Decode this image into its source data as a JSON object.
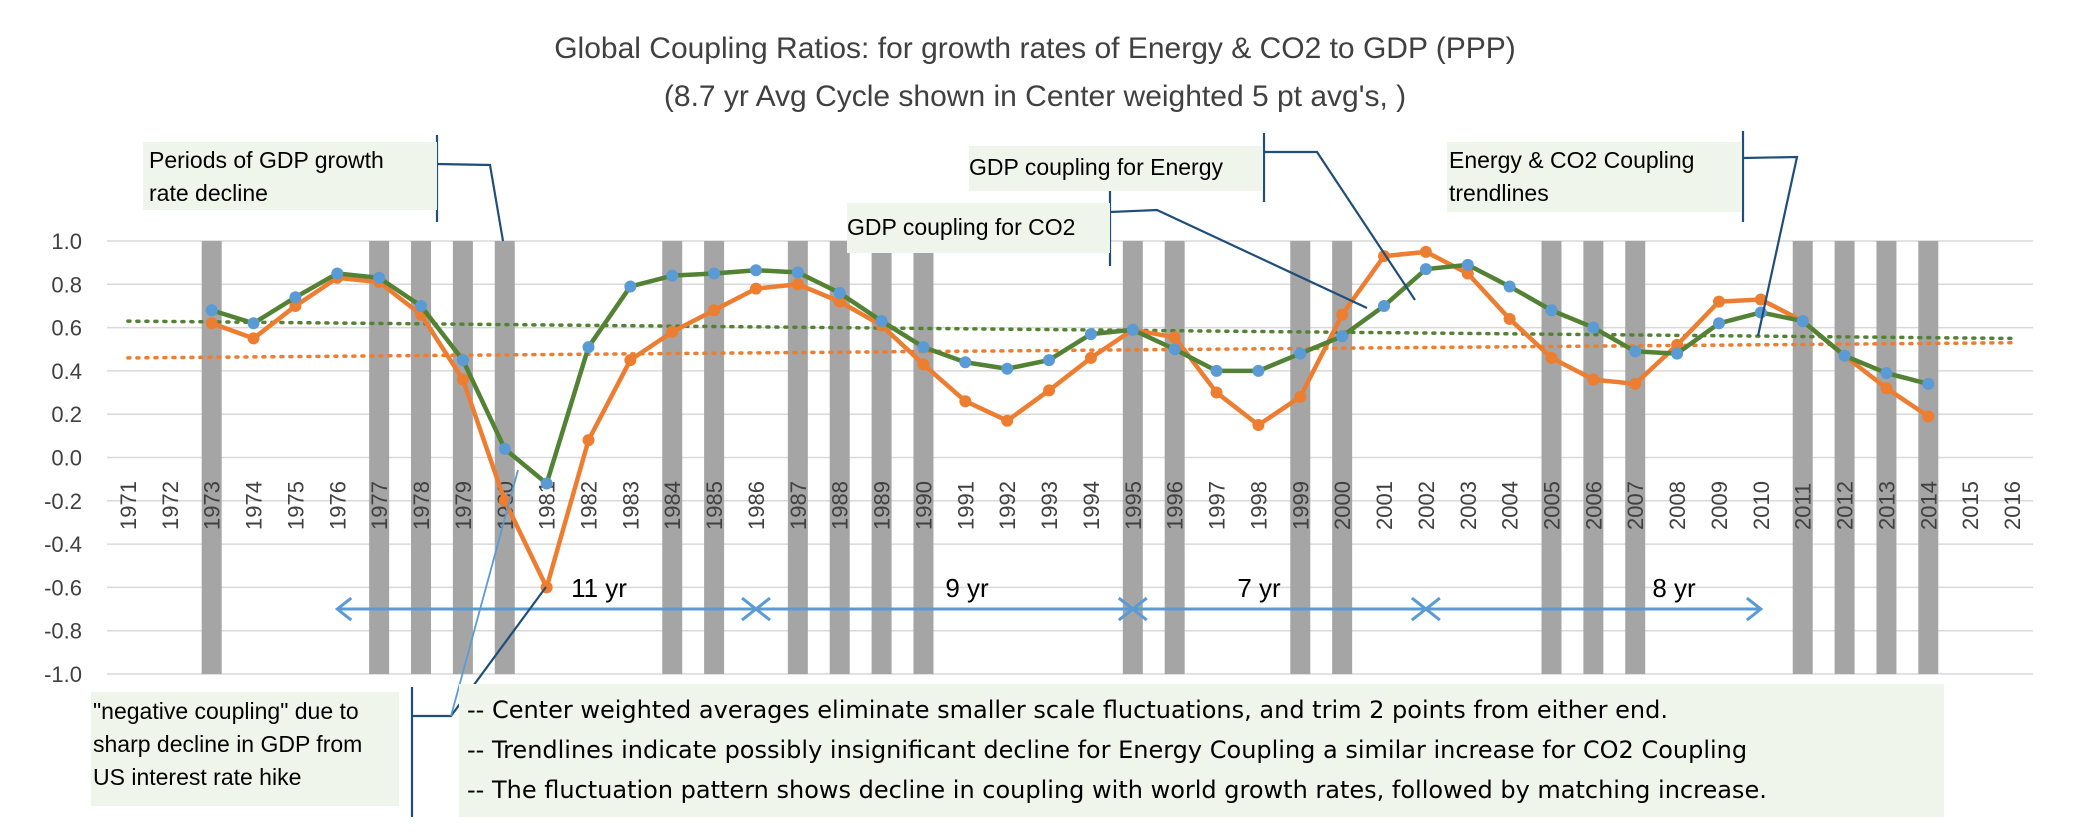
{
  "chart_data": {
    "type": "line",
    "title": "Global Coupling Ratios: for growth rates of Energy & CO2 to GDP (PPP)",
    "subtitle": "(8.7 yr Avg Cycle shown in Center weighted 5 pt avg's, )",
    "xlabel": "",
    "ylabel": "",
    "ylim": [
      -1.0,
      1.0
    ],
    "yticks": [
      "1.0",
      "0.8",
      "0.6",
      "0.4",
      "0.2",
      "0.0",
      "-0.2",
      "-0.4",
      "-0.6",
      "-0.8",
      "-1.0"
    ],
    "ytick_values": [
      1.0,
      0.8,
      0.6,
      0.4,
      0.2,
      0.0,
      -0.2,
      -0.4,
      -0.6,
      -0.8,
      -1.0
    ],
    "grid": true,
    "categories": [
      "1971",
      "1972",
      "1973",
      "1974",
      "1975",
      "1976",
      "1977",
      "1978",
      "1979",
      "1980",
      "1981",
      "1982",
      "1983",
      "1984",
      "1985",
      "1986",
      "1987",
      "1988",
      "1989",
      "1990",
      "1991",
      "1992",
      "1993",
      "1994",
      "1995",
      "1996",
      "1997",
      "1998",
      "1999",
      "2000",
      "2001",
      "2002",
      "2003",
      "2004",
      "2005",
      "2006",
      "2007",
      "2008",
      "2009",
      "2010",
      "2011",
      "2012",
      "2013",
      "2014",
      "2015",
      "2016"
    ],
    "series": [
      {
        "name": "GDP coupling for Energy",
        "line_color": "#548235",
        "marker_color": "#5b9bd5",
        "values": [
          null,
          null,
          0.68,
          0.62,
          0.74,
          0.85,
          0.83,
          0.7,
          0.45,
          0.04,
          -0.12,
          0.51,
          0.79,
          0.84,
          0.85,
          0.865,
          0.855,
          0.76,
          0.63,
          0.51,
          0.44,
          0.41,
          0.45,
          0.57,
          0.59,
          0.5,
          0.4,
          0.4,
          0.48,
          0.56,
          0.7,
          0.87,
          0.89,
          0.79,
          0.68,
          0.6,
          0.49,
          0.48,
          0.62,
          0.67,
          0.63,
          0.47,
          0.39,
          0.34,
          null,
          null
        ]
      },
      {
        "name": "GDP coupling for CO2",
        "line_color": "#ed7d31",
        "marker_color": "#ed7d31",
        "values": [
          null,
          null,
          0.62,
          0.55,
          0.7,
          0.83,
          0.81,
          0.66,
          0.36,
          -0.2,
          -0.6,
          0.08,
          0.45,
          0.58,
          0.68,
          0.78,
          0.8,
          0.72,
          0.61,
          0.43,
          0.26,
          0.17,
          0.31,
          0.46,
          0.59,
          0.555,
          0.3,
          0.15,
          0.28,
          0.66,
          0.93,
          0.95,
          0.85,
          0.64,
          0.46,
          0.36,
          0.34,
          0.52,
          0.72,
          0.73,
          0.63,
          0.47,
          0.32,
          0.19,
          null,
          null
        ]
      }
    ],
    "trendlines": [
      {
        "name": "Energy coupling trendline",
        "color": "#548235",
        "start": {
          "x": "1971",
          "y": 0.63
        },
        "end": {
          "x": "2016",
          "y": 0.55
        }
      },
      {
        "name": "CO2 coupling trendline",
        "color": "#ed7d31",
        "start": {
          "x": "1971",
          "y": 0.46
        },
        "end": {
          "x": "2016",
          "y": 0.53
        }
      }
    ],
    "decline_periods": {
      "label": "Periods of GDP growth rate decline",
      "color": "#a5a5a5",
      "years": [
        "1973",
        "1977",
        "1978",
        "1979",
        "1980",
        "1984",
        "1985",
        "1987",
        "1988",
        "1989",
        "1990",
        "1995",
        "1996",
        "1999",
        "2000",
        "2005",
        "2006",
        "2007",
        "2011",
        "2012",
        "2013",
        "2014"
      ]
    },
    "cycles": {
      "y": -0.7,
      "color": "#5b9bd5",
      "segments": [
        {
          "from": "1976",
          "to": "1986",
          "label": "11 yr"
        },
        {
          "from": "1986",
          "to": "1995",
          "label": "9 yr"
        },
        {
          "from": "1995",
          "to": "2002",
          "label": "7 yr"
        },
        {
          "from": "2002",
          "to": "2010",
          "label": "8 yr"
        }
      ]
    },
    "annotations": {
      "periods": [
        "Periods of GDP growth",
        "rate decline"
      ],
      "energy": "GDP coupling for Energy",
      "co2": "GDP coupling for CO2",
      "trendlines": [
        "Energy & CO2 Coupling",
        "trendlines"
      ],
      "negative": [
        "\"negative coupling\" due to",
        "sharp decline in GDP from",
        "US interest rate hike"
      ],
      "notes": [
        "-- Center weighted averages eliminate smaller scale fluctuations, and trim 2 points from either end.",
        "-- Trendlines indicate possibly insignificant decline for Energy Coupling a similar increase for CO2 Coupling",
        "-- The fluctuation pattern shows decline in coupling with world growth rates, followed by matching increase."
      ]
    }
  }
}
